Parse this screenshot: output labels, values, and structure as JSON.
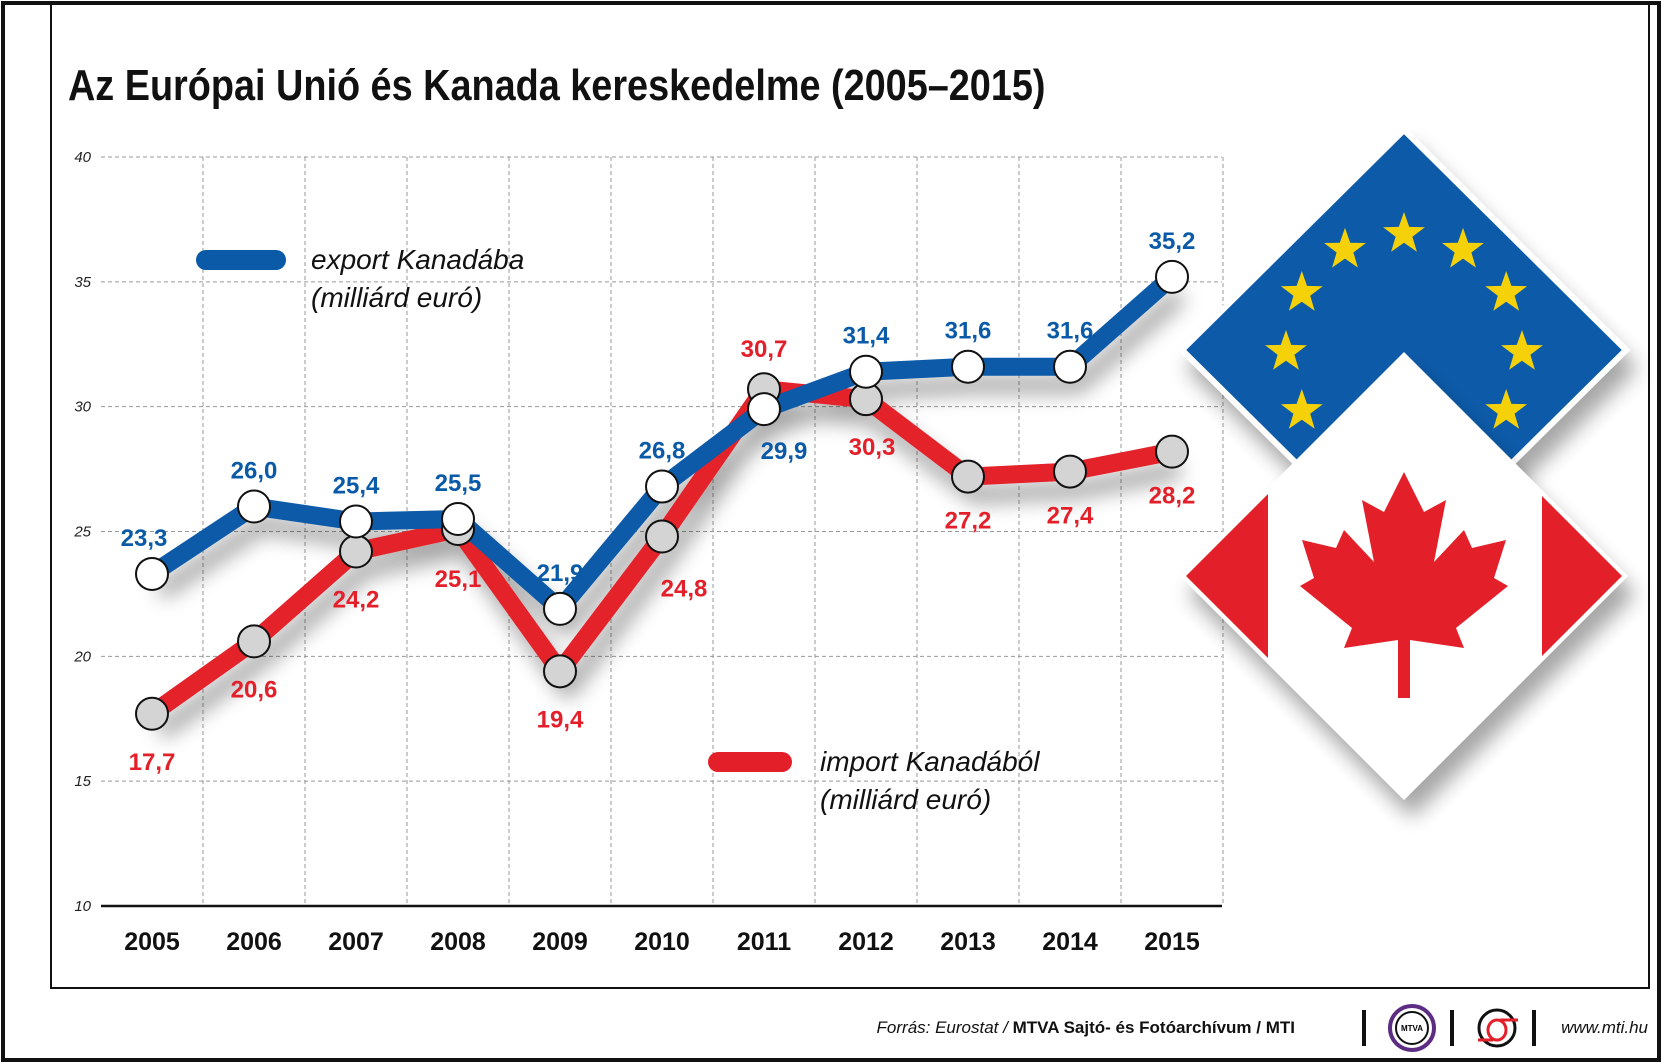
{
  "chart_data": {
    "type": "line",
    "title": "Az Európai Unió és Kanada kereskedelme (2005–2015)",
    "categories": [
      "2005",
      "2006",
      "2007",
      "2008",
      "2009",
      "2010",
      "2011",
      "2012",
      "2013",
      "2014",
      "2015"
    ],
    "ylim": [
      10,
      40
    ],
    "yticks": [
      "10",
      "15",
      "20",
      "25",
      "30",
      "35",
      "40"
    ],
    "grid": true,
    "series": [
      {
        "name": "export Kanadába",
        "unit": "(milliárd euró)",
        "color": "#0a5aa8",
        "values": [
          23.3,
          26.0,
          25.4,
          25.5,
          21.9,
          26.8,
          29.9,
          31.4,
          31.6,
          31.6,
          35.2
        ],
        "labels": [
          "23,3",
          "26,0",
          "25,4",
          "25,5",
          "21,9",
          "26,8",
          "29,9",
          "31,4",
          "31,6",
          "31,6",
          "35,2"
        ]
      },
      {
        "name": "import Kanadából",
        "unit": "(milliárd euró)",
        "color": "#e3202a",
        "values": [
          17.7,
          20.6,
          24.2,
          25.1,
          19.4,
          24.8,
          30.7,
          30.3,
          27.2,
          27.4,
          28.2
        ],
        "labels": [
          "17,7",
          "20,6",
          "24,2",
          "25,1",
          "19,4",
          "24,8",
          "30,7",
          "30,3",
          "27,2",
          "27,4",
          "28,2"
        ]
      }
    ]
  },
  "footer": {
    "source_prefix": "Forrás: Eurostat / ",
    "source_bold": "MTVA Sajtó- és Fotóarchívum / MTI",
    "mtva_logo": "MTVA",
    "website": "www.mti.hu"
  },
  "colors": {
    "eu_blue": "#0a5aa8",
    "eu_star": "#f5d10a",
    "canada_red": "#e3202a"
  }
}
